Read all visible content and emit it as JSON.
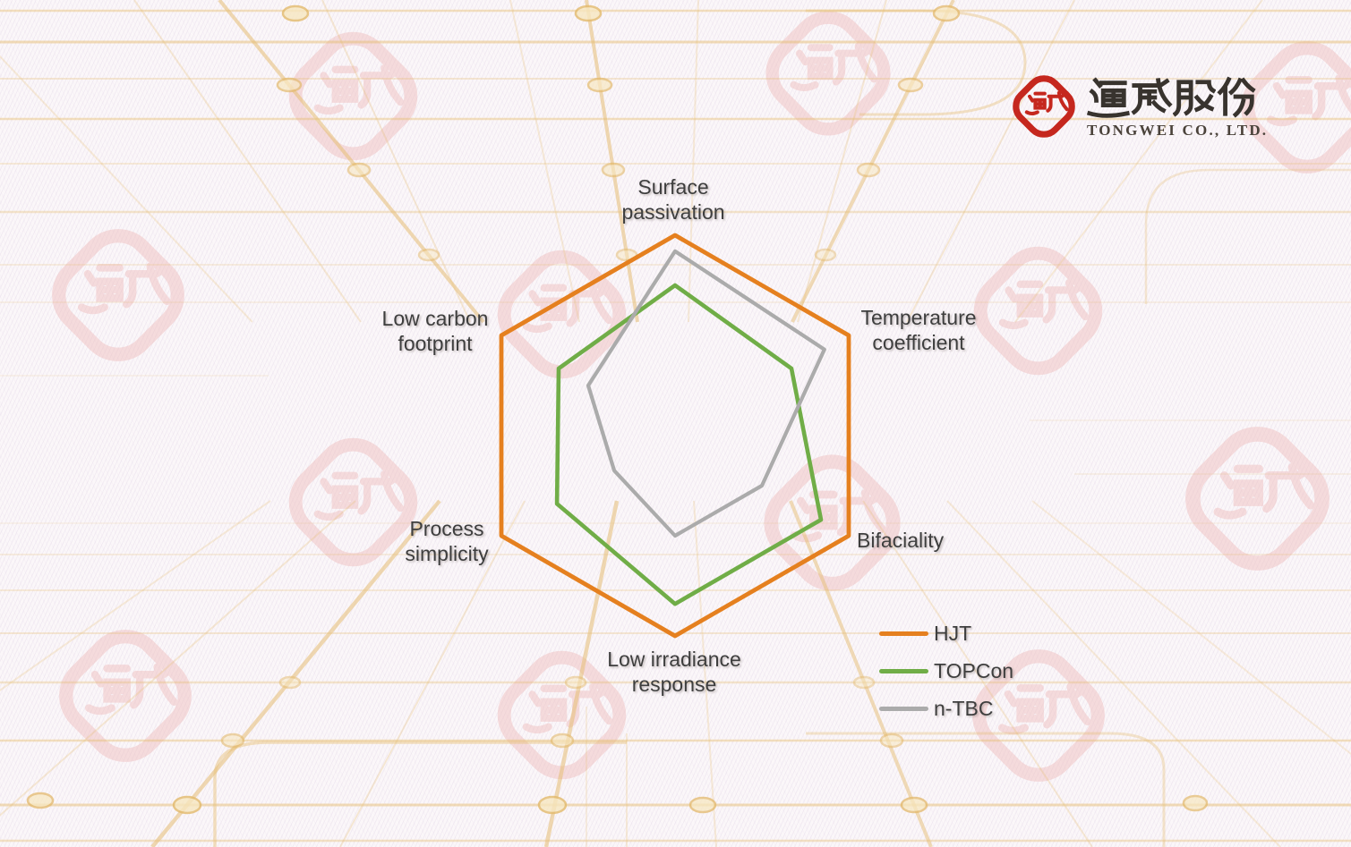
{
  "logo": {
    "company_cn": "通威股份",
    "company_en": "TONGWEI CO., LTD.",
    "seal_text": "通威"
  },
  "chart_data": {
    "type": "radar",
    "axes": [
      "Surface passivation",
      "Temperature coefficient",
      "Bifaciality",
      "Low irradiance response",
      "Process simplicity",
      "Low carbon footprint"
    ],
    "axis_display": [
      "Surface\npassivation",
      "Temperature\ncoefficient",
      "Bifaciality",
      "Low irradiance\nresponse",
      "Process\nsimplicity",
      "Low carbon\nfootprint"
    ],
    "scale": [
      0,
      1
    ],
    "grid": false,
    "fill": "none",
    "legend_position": "bottom-right",
    "series": [
      {
        "name": "HJT",
        "color": "#E5801F",
        "width": 4.8,
        "values": [
          1.0,
          1.0,
          1.0,
          1.0,
          1.0,
          1.0
        ]
      },
      {
        "name": "TOPCon",
        "color": "#70AD47",
        "width": 4.6,
        "values": [
          0.75,
          0.67,
          0.84,
          0.84,
          0.68,
          0.67
        ]
      },
      {
        "name": "n-TBC",
        "color": "#ABABAB",
        "width": 4.2,
        "values": [
          0.92,
          0.86,
          0.5,
          0.5,
          0.35,
          0.5
        ]
      }
    ]
  }
}
